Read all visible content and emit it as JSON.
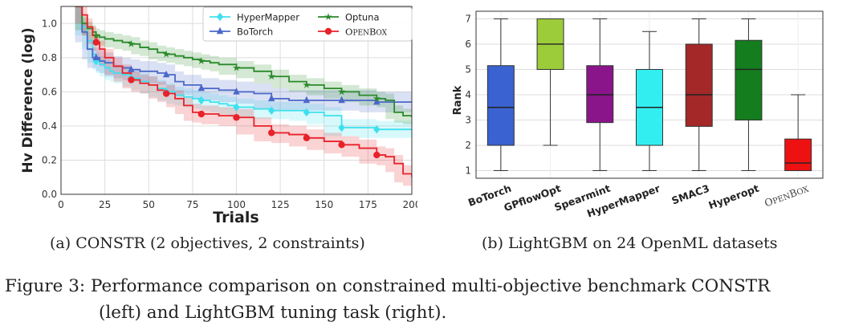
{
  "figure_caption": {
    "line1": "Figure 3: Performance comparison on constrained multi-objective benchmark CONSTR",
    "line2": "(left) and LightGBM tuning task (right)."
  },
  "panels": {
    "a": {
      "caption": "(a) CONSTR (2 objectives, 2 constraints)"
    },
    "b": {
      "caption": "(b) LightGBM on 24 OpenML datasets"
    }
  },
  "chart_data": [
    {
      "type": "line",
      "xlabel": "Trials",
      "ylabel": "Hv Difference (log)",
      "xlim": [
        0,
        200
      ],
      "ylim": [
        0.0,
        1.1
      ],
      "xticks": [
        0,
        25,
        50,
        75,
        100,
        125,
        150,
        175,
        200
      ],
      "yticks": [
        0.0,
        0.2,
        0.4,
        0.6,
        0.8,
        1.0
      ],
      "xtick_labels": [
        "0",
        "25",
        "50",
        "75",
        "100",
        "125",
        "150",
        "175",
        "200"
      ],
      "ytick_labels": [
        "0.0",
        "0.2",
        "0.4",
        "0.6",
        "0.8",
        "1.0"
      ],
      "grid": true,
      "legend_position": "top-right",
      "series": [
        {
          "name": "HyperMapper",
          "color": "#3ee0ee",
          "marker": "diamond",
          "band": 0.05,
          "x": [
            8,
            12,
            15,
            18,
            20,
            22,
            25,
            28,
            30,
            35,
            40,
            45,
            50,
            55,
            60,
            65,
            70,
            75,
            80,
            85,
            90,
            95,
            100,
            110,
            120,
            130,
            140,
            150,
            160,
            170,
            180,
            190,
            200
          ],
          "y": [
            1.1,
            0.98,
            0.9,
            0.82,
            0.78,
            0.76,
            0.74,
            0.72,
            0.71,
            0.7,
            0.68,
            0.66,
            0.64,
            0.62,
            0.6,
            0.58,
            0.57,
            0.56,
            0.55,
            0.54,
            0.53,
            0.52,
            0.51,
            0.5,
            0.49,
            0.49,
            0.48,
            0.46,
            0.39,
            0.39,
            0.38,
            0.38,
            0.38
          ],
          "marker_x": [
            20,
            40,
            60,
            80,
            100,
            120,
            140,
            160,
            180
          ]
        },
        {
          "name": "BoTorch",
          "color": "#4a68c8",
          "marker": "triangle",
          "band": 0.06,
          "x": [
            8,
            12,
            15,
            18,
            20,
            22,
            25,
            30,
            35,
            40,
            45,
            50,
            55,
            60,
            65,
            70,
            75,
            80,
            90,
            100,
            110,
            120,
            130,
            140,
            150,
            160,
            170,
            180,
            190,
            200
          ],
          "y": [
            1.1,
            0.95,
            0.85,
            0.8,
            0.8,
            0.78,
            0.77,
            0.75,
            0.74,
            0.73,
            0.72,
            0.72,
            0.71,
            0.7,
            0.66,
            0.64,
            0.64,
            0.62,
            0.61,
            0.6,
            0.59,
            0.56,
            0.55,
            0.55,
            0.55,
            0.55,
            0.55,
            0.54,
            0.54,
            0.54
          ],
          "marker_x": [
            20,
            40,
            60,
            80,
            100,
            120,
            140,
            160,
            180
          ]
        },
        {
          "name": "Optuna",
          "color": "#2a8a2a",
          "marker": "star",
          "band": 0.04,
          "x": [
            8,
            12,
            15,
            18,
            20,
            22,
            25,
            30,
            35,
            40,
            45,
            50,
            55,
            60,
            65,
            70,
            75,
            80,
            85,
            90,
            100,
            110,
            120,
            130,
            140,
            150,
            160,
            170,
            180,
            185,
            190,
            195,
            200
          ],
          "y": [
            1.1,
            1.0,
            0.97,
            0.95,
            0.93,
            0.92,
            0.91,
            0.9,
            0.89,
            0.88,
            0.86,
            0.85,
            0.83,
            0.82,
            0.81,
            0.8,
            0.79,
            0.78,
            0.77,
            0.76,
            0.74,
            0.72,
            0.69,
            0.66,
            0.64,
            0.62,
            0.6,
            0.58,
            0.56,
            0.55,
            0.48,
            0.46,
            0.45
          ],
          "marker_x": [
            20,
            40,
            60,
            80,
            100,
            120,
            140,
            160,
            180
          ]
        },
        {
          "name": "OpenBox",
          "color": "#e8222a",
          "marker": "circle",
          "band": 0.05,
          "x": [
            8,
            12,
            15,
            18,
            20,
            22,
            25,
            30,
            35,
            40,
            45,
            50,
            55,
            60,
            65,
            70,
            75,
            80,
            90,
            100,
            110,
            120,
            130,
            140,
            150,
            160,
            170,
            180,
            185,
            190,
            195,
            200
          ],
          "y": [
            1.1,
            1.05,
            0.98,
            0.93,
            0.89,
            0.85,
            0.8,
            0.75,
            0.71,
            0.67,
            0.65,
            0.64,
            0.61,
            0.59,
            0.56,
            0.52,
            0.48,
            0.47,
            0.46,
            0.45,
            0.4,
            0.36,
            0.35,
            0.33,
            0.31,
            0.29,
            0.27,
            0.23,
            0.22,
            0.18,
            0.12,
            0.1
          ],
          "marker_x": [
            20,
            40,
            60,
            80,
            100,
            120,
            140,
            160,
            180
          ]
        }
      ]
    },
    {
      "type": "box",
      "ylabel": "Rank",
      "ylim": [
        0.7,
        7.3
      ],
      "yticks": [
        1,
        2,
        3,
        4,
        5,
        6,
        7
      ],
      "ytick_labels": [
        "1",
        "2",
        "3",
        "4",
        "5",
        "6",
        "7"
      ],
      "grid": true,
      "categories": [
        "BoTorch",
        "GPflowOpt",
        "Spearmint",
        "HyperMapper",
        "SMAC3",
        "Hyperopt",
        "OpenBox"
      ],
      "boxes": [
        {
          "label": "BoTorch",
          "whisker_low": 1.0,
          "q1": 2.0,
          "median": 3.5,
          "q3": 5.15,
          "whisker_high": 7.0,
          "color": "#3a62d0"
        },
        {
          "label": "GPflowOpt",
          "whisker_low": 2.0,
          "q1": 5.0,
          "median": 6.0,
          "q3": 7.0,
          "whisker_high": 7.0,
          "color": "#9ccc3a"
        },
        {
          "label": "Spearmint",
          "whisker_low": 1.0,
          "q1": 2.9,
          "median": 4.0,
          "q3": 5.15,
          "whisker_high": 7.0,
          "color": "#8a158a"
        },
        {
          "label": "HyperMapper",
          "whisker_low": 1.0,
          "q1": 2.0,
          "median": 3.5,
          "q3": 5.0,
          "whisker_high": 6.5,
          "color": "#33eef0"
        },
        {
          "label": "SMAC3",
          "whisker_low": 1.0,
          "q1": 2.75,
          "median": 4.0,
          "q3": 6.0,
          "whisker_high": 7.0,
          "color": "#a42828"
        },
        {
          "label": "Hyperopt",
          "whisker_low": 1.0,
          "q1": 3.0,
          "median": 5.0,
          "q3": 6.15,
          "whisker_high": 7.0,
          "color": "#147d1e"
        },
        {
          "label": "OpenBox",
          "whisker_low": 1.0,
          "q1": 1.0,
          "median": 1.3,
          "q3": 2.25,
          "whisker_high": 4.0,
          "color": "#ee1111"
        }
      ]
    }
  ]
}
